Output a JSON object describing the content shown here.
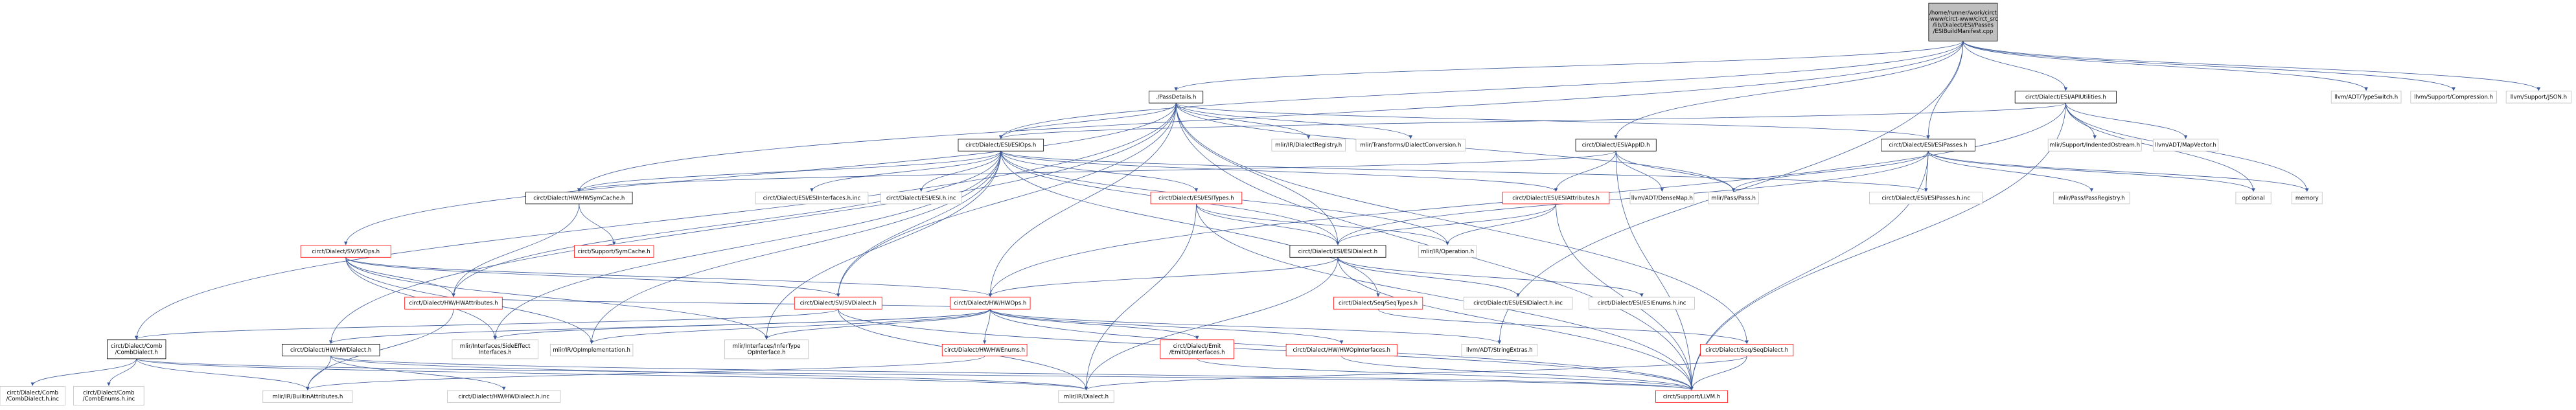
{
  "graph": {
    "colors": {
      "root_fill": "#bfbfbf",
      "node_fill": "#ffffff",
      "node_border": "#999999",
      "red_border": "#ff0000",
      "edge": "#3b5998",
      "text": "#000000"
    },
    "nodes": [
      {
        "id": "root",
        "lines": [
          "/home/runner/work/circt",
          "-www/circt-www/circt_src",
          "/lib/Dialect/ESI/Passes",
          "/ESIBuildManifest.cpp"
        ],
        "kind": "root"
      },
      {
        "id": "passdetails",
        "lines": [
          "./PassDetails.h"
        ],
        "kind": "normal"
      },
      {
        "id": "apiutil",
        "lines": [
          "circt/Dialect/ESI/APIUtilities.h"
        ],
        "kind": "normal"
      },
      {
        "id": "typeswitch",
        "lines": [
          "llvm/ADT/TypeSwitch.h"
        ],
        "kind": "gray"
      },
      {
        "id": "compression",
        "lines": [
          "llvm/Support/Compression.h"
        ],
        "kind": "gray"
      },
      {
        "id": "json",
        "lines": [
          "llvm/Support/JSON.h"
        ],
        "kind": "gray"
      },
      {
        "id": "esiops",
        "lines": [
          "circt/Dialect/ESI/ESIOps.h"
        ],
        "kind": "normal"
      },
      {
        "id": "dialectregistry",
        "lines": [
          "mlir/IR/DialectRegistry.h"
        ],
        "kind": "gray"
      },
      {
        "id": "dialectconversion",
        "lines": [
          "mlir/Transforms/DialectConversion.h"
        ],
        "kind": "gray"
      },
      {
        "id": "appid",
        "lines": [
          "circt/Dialect/ESI/AppID.h"
        ],
        "kind": "normal"
      },
      {
        "id": "esipasses",
        "lines": [
          "circt/Dialect/ESI/ESIPasses.h"
        ],
        "kind": "normal"
      },
      {
        "id": "indentedostream",
        "lines": [
          "mlir/Support/IndentedOstream.h"
        ],
        "kind": "gray"
      },
      {
        "id": "mapvector",
        "lines": [
          "llvm/ADT/MapVector.h"
        ],
        "kind": "gray"
      },
      {
        "id": "hwsymcache",
        "lines": [
          "circt/Dialect/HW/HWSymCache.h"
        ],
        "kind": "normal"
      },
      {
        "id": "esiinterfacesinc",
        "lines": [
          "circt/Dialect/ESI/ESIInterfaces.h.inc"
        ],
        "kind": "gray"
      },
      {
        "id": "esihinc",
        "lines": [
          "circt/Dialect/ESI/ESI.h.inc"
        ],
        "kind": "gray"
      },
      {
        "id": "esitypes",
        "lines": [
          "circt/Dialect/ESI/ESITypes.h"
        ],
        "kind": "red"
      },
      {
        "id": "esiattributes",
        "lines": [
          "circt/Dialect/ESI/ESIAttributes.h"
        ],
        "kind": "red"
      },
      {
        "id": "densemap",
        "lines": [
          "llvm/ADT/DenseMap.h"
        ],
        "kind": "gray"
      },
      {
        "id": "pass",
        "lines": [
          "mlir/Pass/Pass.h"
        ],
        "kind": "gray"
      },
      {
        "id": "esipassesinc",
        "lines": [
          "circt/Dialect/ESI/ESIPasses.h.inc"
        ],
        "kind": "gray"
      },
      {
        "id": "passregistry",
        "lines": [
          "mlir/Pass/PassRegistry.h"
        ],
        "kind": "gray"
      },
      {
        "id": "optional",
        "lines": [
          "optional"
        ],
        "kind": "gray"
      },
      {
        "id": "memory",
        "lines": [
          "memory"
        ],
        "kind": "gray"
      },
      {
        "id": "svops",
        "lines": [
          "circt/Dialect/SV/SVOps.h"
        ],
        "kind": "red"
      },
      {
        "id": "symcache",
        "lines": [
          "circt/Support/SymCache.h"
        ],
        "kind": "red"
      },
      {
        "id": "operation",
        "lines": [
          "mlir/IR/Operation.h"
        ],
        "kind": "gray"
      },
      {
        "id": "esidialect",
        "lines": [
          "circt/Dialect/ESI/ESIDialect.h"
        ],
        "kind": "normal"
      },
      {
        "id": "hwattributes",
        "lines": [
          "circt/Dialect/HW/HWAttributes.h"
        ],
        "kind": "red"
      },
      {
        "id": "svdialect",
        "lines": [
          "circt/Dialect/SV/SVDialect.h"
        ],
        "kind": "red"
      },
      {
        "id": "hwops",
        "lines": [
          "circt/Dialect/HW/HWOps.h"
        ],
        "kind": "red"
      },
      {
        "id": "seqtypes",
        "lines": [
          "circt/Dialect/Seq/SeqTypes.h"
        ],
        "kind": "red"
      },
      {
        "id": "esidialectinc",
        "lines": [
          "circt/Dialect/ESI/ESIDialect.h.inc"
        ],
        "kind": "gray"
      },
      {
        "id": "esienumsinc",
        "lines": [
          "circt/Dialect/ESI/ESIEnums.h.inc"
        ],
        "kind": "gray"
      },
      {
        "id": "combdialect",
        "lines": [
          "circt/Dialect/Comb",
          "/CombDialect.h"
        ],
        "kind": "normal"
      },
      {
        "id": "hwdialect",
        "lines": [
          "circt/Dialect/HW/HWDialect.h"
        ],
        "kind": "normal"
      },
      {
        "id": "sideeffect",
        "lines": [
          "mlir/Interfaces/SideEffect",
          "Interfaces.h"
        ],
        "kind": "gray"
      },
      {
        "id": "opimpl",
        "lines": [
          "mlir/IR/OpImplementation.h"
        ],
        "kind": "gray"
      },
      {
        "id": "infertype",
        "lines": [
          "mlir/Interfaces/InferType",
          "OpInterface.h"
        ],
        "kind": "gray"
      },
      {
        "id": "hwenums",
        "lines": [
          "circt/Dialect/HW/HWEnums.h"
        ],
        "kind": "red"
      },
      {
        "id": "emitopinterfaces",
        "lines": [
          "circt/Dialect/Emit",
          "/EmitOpInterfaces.h"
        ],
        "kind": "red"
      },
      {
        "id": "hwopinterfaces",
        "lines": [
          "circt/Dialect/HW/HWOpInterfaces.h"
        ],
        "kind": "red"
      },
      {
        "id": "stringextras",
        "lines": [
          "llvm/ADT/StringExtras.h"
        ],
        "kind": "gray"
      },
      {
        "id": "seqdialect",
        "lines": [
          "circt/Dialect/Seq/SeqDialect.h"
        ],
        "kind": "red"
      },
      {
        "id": "combdialecthinc",
        "lines": [
          "circt/Dialect/Comb",
          "/CombDialect.h.inc"
        ],
        "kind": "gray"
      },
      {
        "id": "combenumshinc",
        "lines": [
          "circt/Dialect/Comb",
          "/CombEnums.h.inc"
        ],
        "kind": "gray"
      },
      {
        "id": "builtinattributes",
        "lines": [
          "mlir/IR/BuiltinAttributes.h"
        ],
        "kind": "gray"
      },
      {
        "id": "hwdialecthinc",
        "lines": [
          "circt/Dialect/HW/HWDialect.h.inc"
        ],
        "kind": "gray"
      },
      {
        "id": "mlirdialect",
        "lines": [
          "mlir/IR/Dialect.h"
        ],
        "kind": "gray"
      },
      {
        "id": "llvmh",
        "lines": [
          "circt/Support/LLVM.h"
        ],
        "kind": "red"
      }
    ]
  }
}
